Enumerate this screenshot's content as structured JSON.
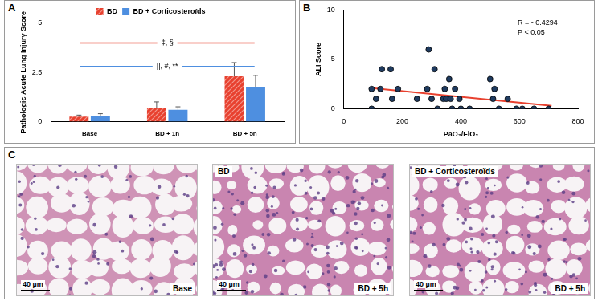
{
  "chart_data": [
    {
      "panel_label": "A",
      "type": "bar",
      "y_label": "Pathologic Acute Lung Injury Score",
      "categories": [
        "Base",
        "BD + 1h",
        "BD + 5h"
      ],
      "series": [
        {
          "name": "BD",
          "color": "#e8412f",
          "values": [
            0.25,
            0.7,
            2.3
          ],
          "errors": [
            0.08,
            0.3,
            0.7
          ]
        },
        {
          "name": "BD + Corticosteroïds",
          "color": "#4e8fe0",
          "values": [
            0.3,
            0.6,
            1.75
          ],
          "errors": [
            0.1,
            0.15,
            0.6
          ]
        }
      ],
      "ylim": [
        0,
        5
      ],
      "yticks": [
        0,
        2.5,
        5
      ],
      "grid": false,
      "legend": "top",
      "annotations": [
        {
          "text": "‡, §",
          "color": "#e8412f",
          "from": "Base",
          "to": "BD + 5h"
        },
        {
          "text": "||, #, **",
          "color": "#4e8fe0",
          "from": "Base",
          "to": "BD + 5h"
        }
      ]
    },
    {
      "panel_label": "B",
      "type": "scatter",
      "x_label": "PaO₂/FiO₂",
      "y_label": "ALI Score",
      "series": [
        {
          "type": "scatter",
          "color": "#1f3b60",
          "x": [
            95,
            95,
            110,
            125,
            130,
            160,
            165,
            185,
            250,
            285,
            290,
            300,
            310,
            320,
            340,
            345,
            350,
            360,
            365,
            370,
            380,
            395,
            400,
            430,
            500,
            510,
            515,
            530,
            560,
            590,
            610,
            650,
            700
          ],
          "values": [
            2,
            0,
            1,
            2,
            4,
            4,
            1,
            2,
            1,
            2,
            6,
            1,
            4,
            0,
            1,
            2,
            1,
            3,
            1,
            0,
            2,
            1,
            0,
            0,
            3,
            1,
            2,
            0,
            1,
            0,
            0,
            0,
            0
          ]
        },
        {
          "type": "line",
          "color": "#e8412f",
          "x": [
            90,
            710
          ],
          "values": [
            2.1,
            0.3
          ]
        }
      ],
      "xlim": [
        0,
        800
      ],
      "xticks": [
        0,
        200,
        400,
        600,
        800
      ],
      "ylim": [
        0,
        10
      ],
      "yticks": [
        0,
        5,
        10
      ],
      "grid": false,
      "annotations": [
        {
          "text": "R = - 0.4294"
        },
        {
          "text": "P < 0.05"
        }
      ]
    }
  ],
  "panel_c": {
    "panel_label": "C",
    "images": [
      {
        "bottom_label": "Base",
        "scale_bar": "40 µm"
      },
      {
        "top_label": "BD",
        "bottom_label": "BD + 5h",
        "scale_bar": "40 µm"
      },
      {
        "top_label": "BD + Corticosteroïds",
        "bottom_label": "BD + 5h",
        "scale_bar": "40 µm"
      }
    ]
  }
}
